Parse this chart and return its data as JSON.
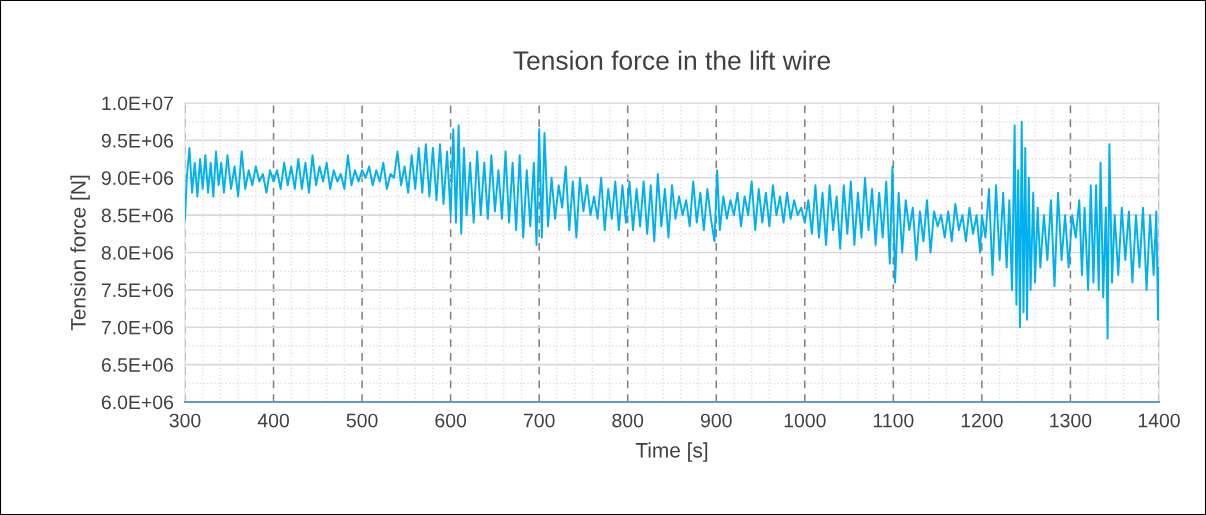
{
  "chart_data": {
    "type": "line",
    "title": "Tension force in the lift wire",
    "xlabel": "Time [s]",
    "ylabel": "Tension force [N]",
    "x": [
      300,
      302,
      305,
      308,
      311,
      314,
      317,
      320,
      323,
      326,
      329,
      332,
      335,
      338,
      341,
      344,
      348,
      352,
      356,
      360,
      364,
      368,
      372,
      376,
      380,
      384,
      388,
      392,
      396,
      400,
      404,
      408,
      412,
      416,
      420,
      424,
      428,
      432,
      436,
      440,
      444,
      448,
      452,
      456,
      460,
      464,
      468,
      472,
      476,
      480,
      484,
      488,
      492,
      496,
      500,
      504,
      508,
      512,
      516,
      520,
      524,
      528,
      532,
      536,
      540,
      544,
      548,
      552,
      556,
      560,
      564,
      568,
      572,
      576,
      580,
      584,
      588,
      592,
      596,
      600,
      603,
      606,
      609,
      612,
      615,
      618,
      622,
      626,
      630,
      634,
      638,
      642,
      646,
      650,
      654,
      658,
      662,
      666,
      670,
      674,
      678,
      682,
      686,
      690,
      694,
      697,
      700,
      703,
      706,
      710,
      714,
      718,
      722,
      726,
      730,
      734,
      738,
      742,
      746,
      750,
      754,
      758,
      762,
      766,
      770,
      774,
      778,
      782,
      786,
      790,
      794,
      798,
      802,
      806,
      810,
      814,
      818,
      822,
      826,
      830,
      834,
      838,
      842,
      846,
      850,
      854,
      858,
      862,
      866,
      870,
      874,
      878,
      882,
      886,
      890,
      894,
      898,
      901,
      904,
      908,
      912,
      916,
      920,
      924,
      928,
      932,
      936,
      940,
      944,
      948,
      952,
      956,
      960,
      964,
      968,
      972,
      976,
      980,
      984,
      988,
      992,
      996,
      1000,
      1004,
      1008,
      1012,
      1016,
      1020,
      1024,
      1028,
      1032,
      1036,
      1040,
      1044,
      1048,
      1052,
      1056,
      1060,
      1064,
      1068,
      1072,
      1076,
      1080,
      1084,
      1088,
      1092,
      1096,
      1099,
      1102,
      1106,
      1110,
      1114,
      1118,
      1122,
      1126,
      1130,
      1134,
      1138,
      1142,
      1146,
      1150,
      1154,
      1158,
      1162,
      1166,
      1170,
      1174,
      1178,
      1182,
      1186,
      1190,
      1194,
      1198,
      1200,
      1204,
      1208,
      1212,
      1216,
      1220,
      1224,
      1228,
      1231,
      1234,
      1237,
      1239,
      1241,
      1243,
      1245,
      1247,
      1249,
      1251,
      1253,
      1255,
      1258,
      1260,
      1263,
      1266,
      1270,
      1274,
      1278,
      1282,
      1286,
      1290,
      1294,
      1298,
      1302,
      1306,
      1310,
      1313,
      1316,
      1320,
      1323,
      1326,
      1329,
      1332,
      1334,
      1337,
      1340,
      1342,
      1344,
      1347,
      1350,
      1354,
      1358,
      1362,
      1366,
      1370,
      1374,
      1378,
      1382,
      1386,
      1390,
      1394,
      1397,
      1399,
      1400
    ],
    "series": [
      {
        "color": "#00b0f0",
        "values": [
          8450000.0,
          9000000.0,
          9400000.0,
          8800000.0,
          9200000.0,
          8750000.0,
          9250000.0,
          8850000.0,
          9300000.0,
          8800000.0,
          9200000.0,
          8750000.0,
          9350000.0,
          8900000.0,
          9200000.0,
          8800000.0,
          9300000.0,
          8850000.0,
          9150000.0,
          8750000.0,
          9350000.0,
          8850000.0,
          9100000.0,
          8900000.0,
          9150000.0,
          8950000.0,
          9050000.0,
          8800000.0,
          9100000.0,
          8950000.0,
          9100000.0,
          8850000.0,
          9200000.0,
          8900000.0,
          9150000.0,
          8850000.0,
          9250000.0,
          8850000.0,
          9200000.0,
          8800000.0,
          9300000.0,
          8900000.0,
          9150000.0,
          8950000.0,
          9200000.0,
          8850000.0,
          9100000.0,
          8950000.0,
          9050000.0,
          8850000.0,
          9300000.0,
          8900000.0,
          9100000.0,
          8950000.0,
          9100000.0,
          9000000.0,
          9150000.0,
          8900000.0,
          9100000.0,
          8950000.0,
          9200000.0,
          8850000.0,
          9050000.0,
          9000000.0,
          9350000.0,
          8900000.0,
          9150000.0,
          8800000.0,
          9300000.0,
          8850000.0,
          9400000.0,
          8800000.0,
          9450000.0,
          8750000.0,
          9400000.0,
          8700000.0,
          9450000.0,
          8650000.0,
          9350000.0,
          8500000.0,
          9650000.0,
          8400000.0,
          9700000.0,
          8250000.0,
          9400000.0,
          8500000.0,
          9200000.0,
          8400000.0,
          9350000.0,
          8500000.0,
          9200000.0,
          8450000.0,
          9300000.0,
          8550000.0,
          9100000.0,
          8450000.0,
          9350000.0,
          8400000.0,
          9200000.0,
          8300000.0,
          9300000.0,
          8200000.0,
          9100000.0,
          8350000.0,
          9200000.0,
          8100000.0,
          9650000.0,
          8200000.0,
          9600000.0,
          8350000.0,
          9000000.0,
          8450000.0,
          8900000.0,
          8600000.0,
          9150000.0,
          8300000.0,
          8950000.0,
          8200000.0,
          9000000.0,
          8550000.0,
          8900000.0,
          8500000.0,
          8750000.0,
          8450000.0,
          9000000.0,
          8300000.0,
          8850000.0,
          8450000.0,
          8950000.0,
          8300000.0,
          8900000.0,
          8400000.0,
          8950000.0,
          8300000.0,
          8850000.0,
          8350000.0,
          8950000.0,
          8250000.0,
          8900000.0,
          8150000.0,
          9050000.0,
          8350000.0,
          8850000.0,
          8200000.0,
          8900000.0,
          8450000.0,
          8750000.0,
          8500000.0,
          8700000.0,
          8350000.0,
          8950000.0,
          8400000.0,
          8800000.0,
          8300000.0,
          8850000.0,
          8450000.0,
          8150000.0,
          9100000.0,
          8300000.0,
          8750000.0,
          8450000.0,
          8700000.0,
          8500000.0,
          8800000.0,
          8350000.0,
          8750000.0,
          8500000.0,
          8950000.0,
          8300000.0,
          8850000.0,
          8400000.0,
          8800000.0,
          8350000.0,
          8900000.0,
          8500000.0,
          8750000.0,
          8400000.0,
          8800000.0,
          8450000.0,
          8700000.0,
          8500000.0,
          8600000.0,
          8400000.0,
          8700000.0,
          8250000.0,
          8900000.0,
          8200000.0,
          8800000.0,
          8100000.0,
          8900000.0,
          8300000.0,
          8750000.0,
          8050000.0,
          8900000.0,
          8250000.0,
          8950000.0,
          8100000.0,
          8800000.0,
          8200000.0,
          9000000.0,
          8300000.0,
          8850000.0,
          8100000.0,
          8800000.0,
          8200000.0,
          8950000.0,
          7850000.0,
          9150000.0,
          7600000.0,
          8800000.0,
          8000000.0,
          8700000.0,
          8300000.0,
          8600000.0,
          7900000.0,
          8550000.0,
          8150000.0,
          8700000.0,
          8000000.0,
          8550000.0,
          8350000.0,
          8500000.0,
          8200000.0,
          8550000.0,
          8150000.0,
          8650000.0,
          8300000.0,
          8500000.0,
          8150000.0,
          8600000.0,
          8250000.0,
          8500000.0,
          8000000.0,
          8500000.0,
          8200000.0,
          8850000.0,
          7700000.0,
          8900000.0,
          7900000.0,
          8800000.0,
          7800000.0,
          8700000.0,
          7500000.0,
          9700000.0,
          7300000.0,
          9100000.0,
          7000000.0,
          9750000.0,
          7200000.0,
          9400000.0,
          7100000.0,
          9000000.0,
          7500000.0,
          8800000.0,
          7600000.0,
          8600000.0,
          7800000.0,
          8500000.0,
          7900000.0,
          8700000.0,
          7550000.0,
          8800000.0,
          7900000.0,
          8500000.0,
          7800000.0,
          8500000.0,
          8200000.0,
          8700000.0,
          7700000.0,
          8600000.0,
          7500000.0,
          8900000.0,
          7600000.0,
          8900000.0,
          7500000.0,
          9200000.0,
          7400000.0,
          8600000.0,
          6850000.0,
          9450000.0,
          7600000.0,
          8500000.0,
          7700000.0,
          8600000.0,
          7900000.0,
          8550000.0,
          7600000.0,
          8500000.0,
          7800000.0,
          8600000.0,
          7500000.0,
          8500000.0,
          7700000.0,
          8550000.0,
          7100000.0,
          7800000.0
        ]
      }
    ],
    "xlim": [
      300,
      1400
    ],
    "xticks": [
      300,
      400,
      500,
      600,
      700,
      800,
      900,
      1000,
      1100,
      1200,
      1300,
      1400
    ],
    "ylim": [
      6000000,
      10000000
    ],
    "yticks": [
      {
        "value": 6000000,
        "label": "6.0E+06"
      },
      {
        "value": 6500000,
        "label": "6.5E+06"
      },
      {
        "value": 7000000,
        "label": "7.0E+06"
      },
      {
        "value": 7500000,
        "label": "7.5E+06"
      },
      {
        "value": 8000000,
        "label": "8.0E+06"
      },
      {
        "value": 8500000,
        "label": "8.5E+06"
      },
      {
        "value": 9000000,
        "label": "9.0E+06"
      },
      {
        "value": 9500000,
        "label": "9.5E+06"
      },
      {
        "value": 10000000,
        "label": "1.0E+07"
      }
    ],
    "grid": true,
    "marker": "none",
    "line_style": "solid"
  }
}
